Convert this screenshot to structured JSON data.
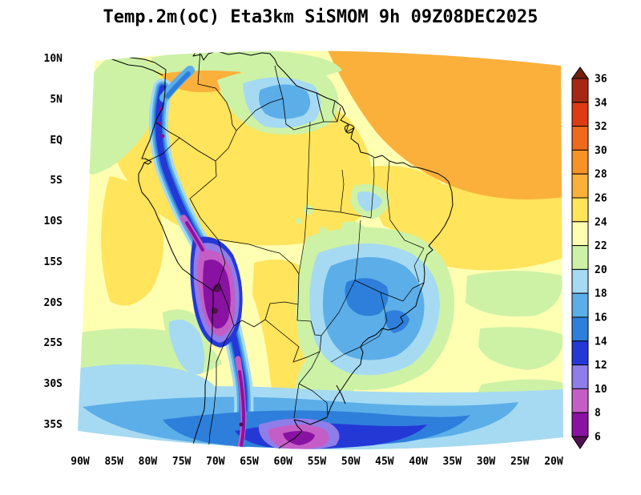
{
  "title": "Temp.2m(oC) Eta3km SiSMOM 9h 09Z08DEC2025",
  "axes": {
    "lat_ticks": [
      "10N",
      "5N",
      "EQ",
      "5S",
      "10S",
      "15S",
      "20S",
      "25S",
      "30S",
      "35S"
    ],
    "lon_ticks": [
      "90W",
      "85W",
      "80W",
      "75W",
      "70W",
      "65W",
      "60W",
      "55W",
      "50W",
      "45W",
      "40W",
      "35W",
      "30W",
      "25W",
      "20W"
    ]
  },
  "colorbar": {
    "levels": [
      6,
      8,
      10,
      12,
      14,
      16,
      18,
      20,
      22,
      24,
      26,
      28,
      30,
      32,
      34,
      36
    ],
    "colors": [
      "#52104e",
      "#8a12a2",
      "#c45ec6",
      "#8f7dea",
      "#2438d6",
      "#2e7fdb",
      "#5caee8",
      "#a5daf2",
      "#cdf2a6",
      "#ffffb2",
      "#ffe45c",
      "#fbb03c",
      "#f79226",
      "#ef6a1d",
      "#dc3b14",
      "#a52714",
      "#6f1f0c"
    ]
  },
  "chart_data": {
    "type": "heatmap",
    "variable": "Temp.2m (oC)",
    "model": "Eta3km SiSMOM",
    "forecast": "9h",
    "init_time": "09Z08DEC2025",
    "scale_min": 6,
    "scale_max": 36,
    "notable_features": [
      "Warm band 26-28 oC over tropical North Atlantic, Venezuela and the Guianas",
      "Widespread 22-26 oC over the Amazon basin, Chaco/Argentina and subtropical oceans",
      "Cool 16-20 oC pockets over northern Amazon highlands and southeast Brazil",
      "Cold Andes corridor below 8 oC from Ecuador to Patagonia, coldest over the Bolivian Altiplano",
      "Cold Southern Ocean band 8-16 oC along the bottom of the domain with a sub-8 oC core near 60W/37S"
    ]
  }
}
